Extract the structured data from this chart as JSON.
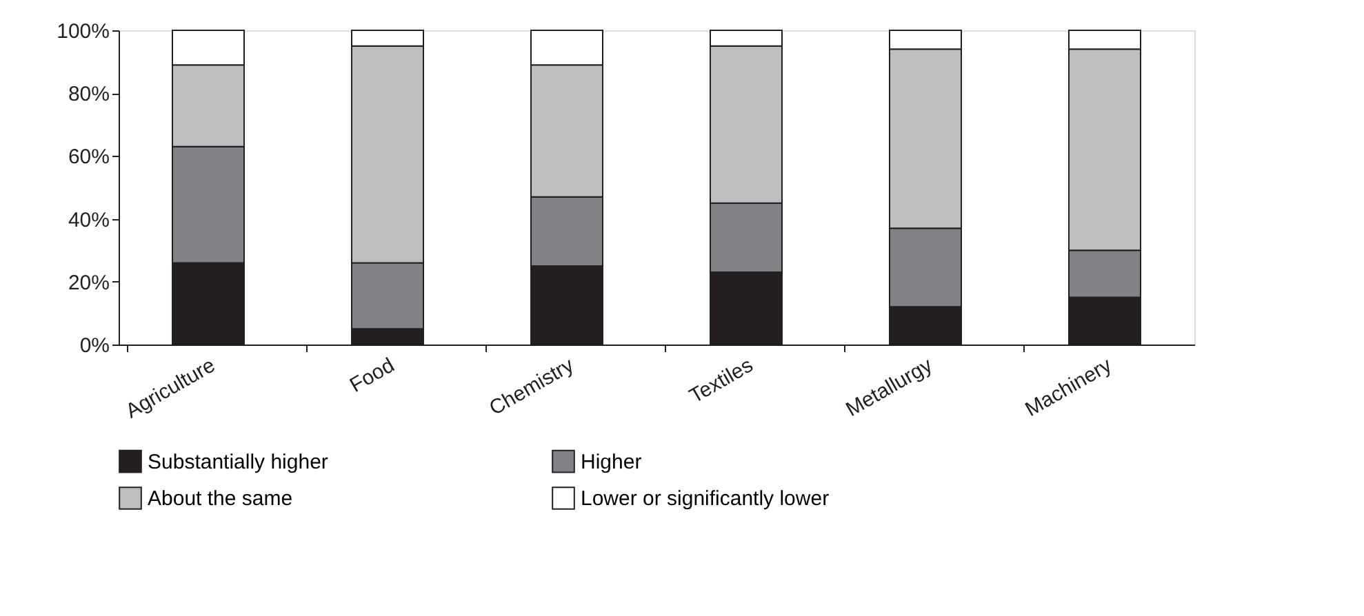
{
  "chart_data": {
    "type": "bar",
    "stacked": true,
    "categories": [
      "Agriculture",
      "Food",
      "Chemistry",
      "Textiles",
      "Metallurgy",
      "Machinery"
    ],
    "series": [
      {
        "name": "Substantially higher",
        "color": "#231f20",
        "values": [
          26,
          5,
          25,
          23,
          12,
          15
        ]
      },
      {
        "name": "Higher",
        "color": "#808285",
        "values": [
          37,
          21,
          22,
          22,
          25,
          15
        ]
      },
      {
        "name": "About the same",
        "color": "#bcbec0",
        "values": [
          26,
          69,
          42,
          50,
          57,
          64
        ]
      },
      {
        "name": "Lower or significantly lower",
        "color": "#ffffff",
        "values": [
          11,
          5,
          11,
          5,
          6,
          6
        ]
      }
    ],
    "ylim": [
      0,
      100
    ],
    "yticks": [
      {
        "value": 0,
        "label": "0%"
      },
      {
        "value": 20,
        "label": "20%"
      },
      {
        "value": 40,
        "label": "40%"
      },
      {
        "value": 60,
        "label": "60%"
      },
      {
        "value": 80,
        "label": "80%"
      },
      {
        "value": 100,
        "label": "100%"
      }
    ],
    "grid": false,
    "legend": "bottom"
  }
}
